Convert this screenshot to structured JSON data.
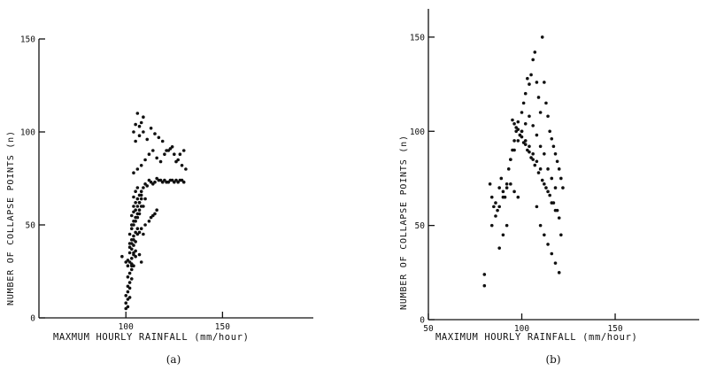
{
  "chart_data": [
    {
      "type": "scatter",
      "panel_label": "(a)",
      "xlabel": "MAXMUM   HOURLY   RAINFALL (mm/hour)",
      "ylabel": "NUMBER  OF  COLLAPSE  POINTS  (n)",
      "xlim": [
        55,
        197
      ],
      "ylim": [
        0,
        150
      ],
      "xticks": [
        100,
        150
      ],
      "yticks": [
        0,
        50,
        100,
        150
      ],
      "grid": false,
      "x": [
        98,
        100,
        101,
        103,
        105,
        107,
        108,
        103,
        104,
        102,
        103,
        104,
        106,
        107,
        109,
        108,
        110,
        112,
        113,
        114,
        115,
        116,
        104,
        105,
        106,
        107,
        108,
        109,
        110,
        111,
        112,
        113,
        114,
        115,
        116,
        117,
        118,
        119,
        120,
        121,
        122,
        123,
        124,
        125,
        126,
        127,
        128,
        129,
        130,
        104,
        106,
        108,
        110,
        112,
        114,
        116,
        118,
        120,
        122,
        124,
        126,
        128,
        130,
        105,
        107,
        109,
        111,
        113,
        115,
        117,
        119,
        121,
        123,
        125,
        127,
        129,
        131,
        104,
        105,
        106,
        107,
        108,
        109,
        104,
        105,
        106,
        107,
        108,
        109,
        110,
        103,
        104,
        105,
        106,
        107,
        108,
        103,
        104,
        105,
        106,
        107,
        108,
        102,
        103,
        104,
        105,
        106,
        107,
        102,
        103,
        104,
        105,
        106,
        102,
        103,
        104,
        105,
        101,
        102,
        103,
        104,
        105,
        101,
        102,
        103,
        104,
        101,
        102,
        103,
        100,
        101,
        102,
        100,
        101,
        102,
        100,
        101
      ],
      "y": [
        33,
        30,
        31,
        29,
        33,
        34,
        30,
        28,
        35,
        38,
        40,
        42,
        45,
        46,
        45,
        48,
        50,
        52,
        54,
        55,
        56,
        58,
        60,
        62,
        64,
        66,
        68,
        70,
        72,
        71,
        74,
        73,
        72,
        73,
        75,
        74,
        74,
        73,
        74,
        73,
        73,
        74,
        74,
        73,
        74,
        73,
        74,
        74,
        73,
        78,
        80,
        82,
        85,
        88,
        90,
        86,
        84,
        88,
        90,
        92,
        84,
        88,
        90,
        95,
        98,
        100,
        96,
        102,
        99,
        97,
        95,
        90,
        91,
        88,
        85,
        82,
        80,
        100,
        104,
        110,
        103,
        105,
        108,
        65,
        68,
        70,
        62,
        66,
        60,
        64,
        55,
        57,
        58,
        60,
        62,
        64,
        50,
        52,
        54,
        56,
        58,
        60,
        45,
        48,
        50,
        52,
        54,
        56,
        40,
        42,
        44,
        46,
        48,
        35,
        37,
        39,
        41,
        28,
        30,
        32,
        34,
        36,
        22,
        24,
        26,
        28,
        17,
        19,
        21,
        12,
        14,
        16,
        8,
        10,
        11,
        5,
        6
      ]
    },
    {
      "type": "scatter",
      "panel_label": "(b)",
      "xlabel": "MAXIMUM    HOURLY    RAINFALL  (mm/hour)",
      "ylabel": "NUMBER  OF  COLLAPSE  POINTS  (n)",
      "xlim": [
        50,
        195
      ],
      "ylim": [
        0,
        165
      ],
      "xticks": [
        50,
        100,
        150
      ],
      "yticks": [
        0,
        50,
        100,
        150
      ],
      "grid": false,
      "x": [
        80,
        80,
        83,
        84,
        85,
        86,
        87,
        88,
        89,
        90,
        91,
        92,
        93,
        94,
        95,
        96,
        97,
        98,
        99,
        100,
        101,
        102,
        103,
        104,
        105,
        106,
        107,
        108,
        109,
        110,
        111,
        112,
        113,
        114,
        115,
        116,
        117,
        118,
        119,
        120,
        121,
        122,
        84,
        86,
        88,
        90,
        92,
        94,
        96,
        98,
        100,
        102,
        104,
        106,
        108,
        110,
        112,
        114,
        116,
        118,
        120,
        88,
        90,
        92,
        94,
        96,
        98,
        100,
        102,
        104,
        106,
        108,
        110,
        112,
        114,
        116,
        118,
        95,
        97,
        99,
        101,
        103,
        105,
        107,
        109,
        111,
        113,
        115,
        117,
        119,
        121,
        96,
        98,
        100,
        102,
        104,
        106,
        108,
        110,
        112,
        114,
        116,
        118,
        120
      ],
      "y": [
        24,
        18,
        72,
        65,
        60,
        62,
        58,
        70,
        75,
        68,
        65,
        72,
        80,
        85,
        90,
        95,
        100,
        105,
        98,
        110,
        115,
        120,
        128,
        125,
        130,
        138,
        142,
        126,
        118,
        110,
        150,
        126,
        115,
        108,
        100,
        96,
        92,
        88,
        84,
        80,
        75,
        70,
        50,
        55,
        60,
        65,
        70,
        72,
        68,
        65,
        100,
        95,
        92,
        88,
        84,
        80,
        72,
        68,
        62,
        58,
        54,
        38,
        45,
        50,
        85,
        90,
        95,
        100,
        104,
        108,
        103,
        98,
        92,
        88,
        80,
        75,
        70,
        106,
        102,
        98,
        94,
        90,
        86,
        82,
        78,
        74,
        70,
        66,
        62,
        58,
        45,
        104,
        101,
        97,
        93,
        89,
        85,
        60,
        50,
        45,
        40,
        35,
        30,
        25
      ]
    }
  ]
}
